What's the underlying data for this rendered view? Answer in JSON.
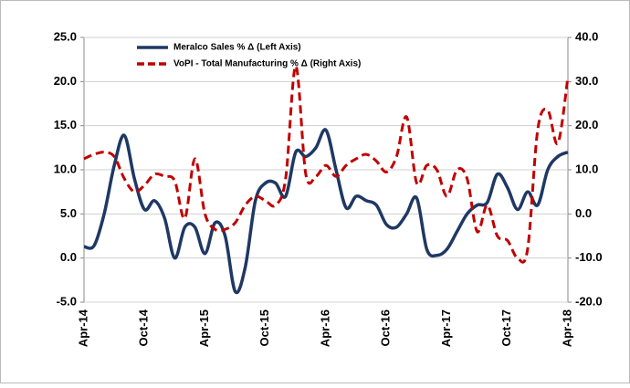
{
  "chart_data": {
    "type": "line",
    "categories": [
      "Apr-14",
      null,
      null,
      null,
      null,
      null,
      "Oct-14",
      null,
      null,
      null,
      null,
      null,
      "Apr-15",
      null,
      null,
      null,
      null,
      null,
      "Oct-15",
      null,
      null,
      null,
      null,
      null,
      "Apr-16",
      null,
      null,
      null,
      null,
      null,
      "Oct-16",
      null,
      null,
      null,
      null,
      null,
      "Apr-17",
      null,
      null,
      null,
      null,
      null,
      "Oct-17",
      null,
      null,
      null,
      null,
      null,
      "Apr-18"
    ],
    "series": [
      {
        "name": "Meralco Sales % Δ (Left Axis)",
        "color": "#1f3864",
        "axis": "y",
        "values": [
          1.3,
          1.4,
          5,
          10.5,
          13.9,
          9,
          5.5,
          6.5,
          4.5,
          0,
          3.5,
          3.5,
          0.5,
          4,
          2.5,
          -3.8,
          -1,
          6.5,
          8.5,
          8.5,
          7,
          12,
          11.5,
          12.5,
          14.5,
          10,
          5.7,
          7,
          6.5,
          6,
          3.8,
          3.5,
          5,
          6.8,
          1,
          0.3,
          1,
          3,
          5,
          6,
          6.3,
          9.5,
          8,
          5.5,
          7.5,
          6,
          10,
          11.5,
          12
        ]
      },
      {
        "name": "VoPI - Total Manufacturing % Δ (Right Axis)",
        "color": "#c00000",
        "axis": "y2",
        "dashed": true,
        "values": [
          12.5,
          13.5,
          14,
          13,
          8,
          5,
          6.5,
          9,
          8.5,
          7.5,
          -1,
          12.5,
          0,
          -3.5,
          -3.5,
          -2,
          2,
          4,
          3,
          2,
          8,
          33.5,
          9,
          8.5,
          11,
          8.5,
          11,
          12.5,
          13.5,
          12,
          9.5,
          13,
          22,
          7,
          11,
          10,
          4,
          10,
          8,
          -4,
          2,
          -5,
          -6,
          -10,
          -8,
          19,
          23.5,
          16,
          31
        ]
      }
    ],
    "ylim": [
      -5,
      25
    ],
    "yticks": [
      {
        "value": -5,
        "label": "-5.0"
      },
      {
        "value": 0,
        "label": "0.0"
      },
      {
        "value": 5,
        "label": "5.0"
      },
      {
        "value": 10,
        "label": "10.0"
      },
      {
        "value": 15,
        "label": "15.0"
      },
      {
        "value": 20,
        "label": "20.0"
      },
      {
        "value": 25,
        "label": "25.0"
      }
    ],
    "y2lim": [
      -20,
      40
    ],
    "y2ticks": [
      {
        "value": -20,
        "label": "-20.0"
      },
      {
        "value": -10,
        "label": "-10.0"
      },
      {
        "value": 0,
        "label": "0.0"
      },
      {
        "value": 10,
        "label": "10.0"
      },
      {
        "value": 20,
        "label": "20.0"
      },
      {
        "value": 30,
        "label": "30.0"
      },
      {
        "value": 40,
        "label": "40.0"
      }
    ],
    "grid": true,
    "legend": "top-left"
  }
}
